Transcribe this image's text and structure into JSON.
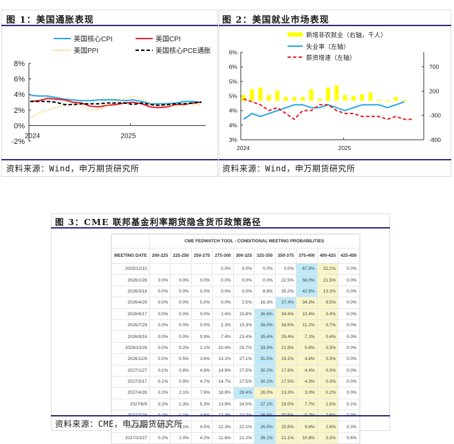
{
  "figure1": {
    "title": "图 1：美国通胀表现",
    "source": "资料来源：Wind，申万期货研究所",
    "legend": [
      "美国核心CPI",
      "美国CPI",
      "美国PPI",
      "美国核心PCE通胀"
    ]
  },
  "figure2": {
    "title": "图 2：美国就业市场表现",
    "source": "资料来源：Wind，申万期货研究所",
    "legend": [
      "新增非农就业（右轴，千人）",
      "失业率（左轴）",
      "薪资增速（左轴）"
    ]
  },
  "figure3": {
    "title": "图 3：CME 联邦基金利率期货隐含货币政策路径",
    "source": "资料来源：CME，申万期货研究所",
    "table_title": "CME FEDWATCH TOOL - CONDITIONAL MEETING PROBABILITIES",
    "date_header": "MEETING DATE"
  },
  "chart_data": [
    {
      "type": "line",
      "title": "图 1：美国通胀表现",
      "xlabel": "",
      "ylabel": "",
      "x_ticks": [
        "2024",
        "2025"
      ],
      "y_ticks": [
        "-2%",
        "0%",
        "2%",
        "4%",
        "6%",
        "8%"
      ],
      "ylim": [
        -2,
        8
      ],
      "x": [
        "2024-01",
        "2024-02",
        "2024-03",
        "2024-04",
        "2024-05",
        "2024-06",
        "2024-07",
        "2024-08",
        "2024-09",
        "2024-10",
        "2024-11",
        "2024-12",
        "2025-01",
        "2025-02",
        "2025-03",
        "2025-04",
        "2025-05",
        "2025-06",
        "2025-07",
        "2025-08",
        "2025-09"
      ],
      "series": [
        {
          "name": "美国核心CPI",
          "color": "#27a9e1",
          "style": "solid",
          "values": [
            3.9,
            3.8,
            3.8,
            3.6,
            3.4,
            3.3,
            3.2,
            3.2,
            3.3,
            3.3,
            3.3,
            3.2,
            3.3,
            3.1,
            2.8,
            2.8,
            2.8,
            2.9,
            3.1,
            3.1,
            3.0
          ]
        },
        {
          "name": "美国CPI",
          "color": "#e8202a",
          "style": "solid",
          "values": [
            3.1,
            3.2,
            3.5,
            3.4,
            3.3,
            3.0,
            2.9,
            2.5,
            2.4,
            2.6,
            2.7,
            2.9,
            3.0,
            2.8,
            2.4,
            2.3,
            2.4,
            2.7,
            2.7,
            2.9,
            3.0
          ]
        },
        {
          "name": "美国PPI",
          "color": "#f5c242",
          "style": "dotted",
          "values": [
            1.0,
            1.6,
            2.0,
            2.3,
            2.6,
            2.8,
            2.5,
            2.0,
            2.0,
            2.6,
            3.0,
            3.5,
            3.8,
            3.4,
            2.9,
            2.5,
            2.6,
            2.5,
            2.9,
            2.7,
            2.6
          ]
        },
        {
          "name": "美国核心PCE通胀",
          "color": "#000000",
          "style": "dashed",
          "values": [
            3.1,
            3.1,
            3.1,
            3.0,
            2.7,
            2.7,
            2.8,
            2.8,
            2.8,
            2.9,
            2.9,
            2.9,
            2.7,
            2.9,
            2.7,
            2.6,
            2.7,
            2.8,
            2.8,
            2.9,
            3.0
          ]
        }
      ],
      "legend_position": "top"
    },
    {
      "type": "bar+line",
      "title": "图 2：美国就业市场表现",
      "x_ticks": [
        "2024",
        "2025"
      ],
      "y_ticks_left": [
        "3%",
        "4%",
        "4%",
        "5%",
        "5%",
        "6%",
        "6%"
      ],
      "y_ticks_right": [
        "-800",
        "-300",
        "200",
        "700"
      ],
      "ylim_left": [
        3.0,
        6.0
      ],
      "ylim_right": [
        -800,
        1200
      ],
      "x": [
        "2024-01",
        "2024-02",
        "2024-03",
        "2024-04",
        "2024-05",
        "2024-06",
        "2024-07",
        "2024-08",
        "2024-09",
        "2024-10",
        "2024-11",
        "2024-12",
        "2025-01",
        "2025-02",
        "2025-03",
        "2025-04",
        "2025-05",
        "2025-06",
        "2025-07",
        "2025-08",
        "2025-09"
      ],
      "series": [
        {
          "name": "新增非农就业（右轴，千人）",
          "axis": "right",
          "type": "bar",
          "color": "#ffff00",
          "values": [
            120,
            240,
            270,
            120,
            210,
            80,
            80,
            80,
            240,
            40,
            270,
            320,
            120,
            100,
            130,
            170,
            20,
            -10,
            80,
            20,
            null
          ]
        },
        {
          "name": "失业率（左轴）",
          "axis": "left",
          "type": "line",
          "color": "#27a9e1",
          "values": [
            3.7,
            3.9,
            3.8,
            3.9,
            4.0,
            4.1,
            4.2,
            4.2,
            4.1,
            4.1,
            4.2,
            4.1,
            4.0,
            4.1,
            4.2,
            4.2,
            4.2,
            4.1,
            4.2,
            4.3,
            null
          ]
        },
        {
          "name": "薪资增速（左轴）",
          "axis": "left",
          "type": "line",
          "style": "dashed",
          "color": "#e8202a",
          "values": [
            4.4,
            4.3,
            4.2,
            4.0,
            4.1,
            3.9,
            3.7,
            4.0,
            4.0,
            4.2,
            4.2,
            4.0,
            3.9,
            3.9,
            3.8,
            3.8,
            3.8,
            3.7,
            3.8,
            3.7,
            3.7
          ]
        }
      ],
      "legend_position": "top"
    },
    {
      "type": "table",
      "title": "CME FEDWATCH TOOL - CONDITIONAL MEETING PROBABILITIES",
      "columns": [
        "MEETING DATE",
        "200-225",
        "225-250",
        "250-275",
        "275-300",
        "300-325",
        "325-350",
        "350-375",
        "375-400",
        "400-425",
        "425-450"
      ],
      "rows": [
        {
          "date": "2025/12/10",
          "values": [
            "",
            "",
            "",
            "0.0%",
            "0.0%",
            "0.0%",
            "0.0%",
            "67.8%",
            "32.2%",
            "0.0%"
          ],
          "max": 7
        },
        {
          "date": "2026/1/28",
          "values": [
            "0.0%",
            "0.0%",
            "0.0%",
            "0.0%",
            "0.0%",
            "0.0%",
            "22.5%",
            "56.0%",
            "21.5%",
            "0.0%"
          ],
          "max": 7
        },
        {
          "date": "2026/3/18",
          "values": [
            "0.0%",
            "0.0%",
            "0.0%",
            "0.0%",
            "0.0%",
            "8.6%",
            "35.2%",
            "42.9%",
            "13.3%",
            "0.0%"
          ],
          "max": 7
        },
        {
          "date": "2026/4/29",
          "values": [
            "0.0%",
            "0.0%",
            "0.0%",
            "0.0%",
            "2.5%",
            "16.3%",
            "37.4%",
            "34.3%",
            "9.5%",
            "0.0%"
          ],
          "max": 6
        },
        {
          "date": "2026/6/17",
          "values": [
            "0.0%",
            "0.0%",
            "0.0%",
            "2.4%",
            "15.8%",
            "36.6%",
            "34.4%",
            "10.4%",
            "0.4%",
            "0.0%"
          ],
          "max": 5
        },
        {
          "date": "2026/7/29",
          "values": [
            "0.0%",
            "0.0%",
            "0.0%",
            "2.3%",
            "15.3%",
            "36.0%",
            "34.5%",
            "11.2%",
            "0.7%",
            "0.0%"
          ],
          "max": 5
        },
        {
          "date": "2026/9/16",
          "values": [
            "0.0%",
            "0.0%",
            "0.9%",
            "7.4%",
            "23.4%",
            "35.4%",
            "25.4%",
            "7.1%",
            "0.4%",
            "0.0%"
          ],
          "max": 5
        },
        {
          "date": "2026/10/28",
          "values": [
            "0.0%",
            "0.2%",
            "2.1%",
            "10.4%",
            "25.7%",
            "33.5%",
            "21.9%",
            "5.8%",
            "0.3%",
            "0.0%"
          ],
          "max": 5
        },
        {
          "date": "2026/12/9",
          "values": [
            "0.0%",
            "0.5%",
            "3.6%",
            "13.1%",
            "27.1%",
            "31.5%",
            "19.1%",
            "4.8%",
            "0.3%",
            "0.0%"
          ],
          "max": 5
        },
        {
          "date": "2027/1/27",
          "values": [
            "0.1%",
            "0.8%",
            "4.6%",
            "14.6%",
            "27.5%",
            "30.2%",
            "17.6%",
            "4.4%",
            "0.3%",
            "0.0%"
          ],
          "max": 5
        },
        {
          "date": "2027/3/17",
          "values": [
            "0.1%",
            "0.9%",
            "4.7%",
            "14.7%",
            "27.5%",
            "30.1%",
            "17.5%",
            "4.3%",
            "0.3%",
            "0.0%"
          ],
          "max": 5
        },
        {
          "date": "2027/4/28",
          "values": [
            "0.3%",
            "2.1%",
            "7.9%",
            "18.8%",
            "28.4%",
            "26.0%",
            "13.3%",
            "3.0%",
            "0.2%",
            "0.0%"
          ],
          "max": 4
        },
        {
          "date": "2027/6/9",
          "values": [
            "0.2%",
            "1.3%",
            "5.3%",
            "13.9%",
            "24.0%",
            "27.1%",
            "19.0%",
            "7.7%",
            "1.5%",
            "0.1%"
          ],
          "max": 5
        },
        {
          "date": "2027/7/28",
          "values": [
            "0.2%",
            "1.1%",
            "4.6%",
            "12.3%",
            "22.2%",
            "26.5%",
            "20.5%",
            "9.7%",
            "2.6%",
            "0.3%"
          ],
          "max": 5
        },
        {
          "date": "2027/9/15",
          "values": [
            "0.2%",
            "1.1%",
            "4.5%",
            "12.3%",
            "22.1%",
            "26.5%",
            "20.5%",
            "9.8%",
            "2.6%",
            "0.3%"
          ],
          "max": 5
        },
        {
          "date": "2027/10/27",
          "values": [
            "0.2%",
            "1.0%",
            "4.2%",
            "11.6%",
            "21.2%",
            "26.1%",
            "21.1%",
            "10.8%",
            "3.3%",
            "0.6%"
          ],
          "max": 5
        }
      ]
    }
  ]
}
